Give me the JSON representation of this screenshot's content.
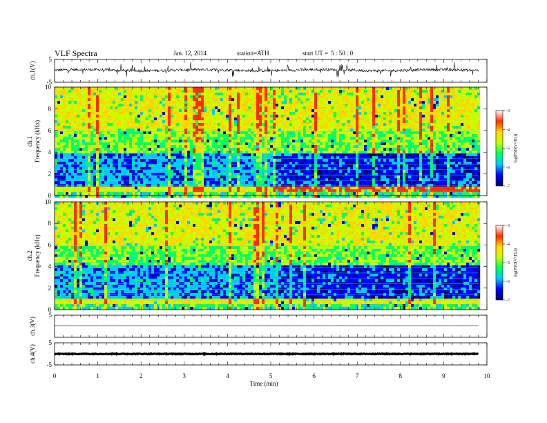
{
  "header": {
    "title": "VLF  Spectra",
    "date": "Jan. 12, 2014",
    "station": "station=ATH",
    "start_label": "start  UT  =",
    "start_time": "5 : 50 : 0"
  },
  "chart_data": [
    {
      "type": "line",
      "panel": "ch1-waveform",
      "ylabel": "ch.1(V)",
      "ylim": [
        -5,
        5
      ],
      "yticks": [
        "5",
        "-5"
      ],
      "x_range_min": [
        0,
        9.8
      ],
      "trace_level": 0.3,
      "color": "#000000"
    },
    {
      "type": "heatmap",
      "panel": "ch1-spectrogram",
      "ylabel_channel": "ch.1",
      "ylabel": "Frequency  (kHz)",
      "ylim": [
        0,
        10
      ],
      "yticks": [
        "0",
        "2",
        "4",
        "6",
        "8",
        "10"
      ],
      "x_range_min": [
        0,
        9.8
      ],
      "colorbar": {
        "label": "log(PSD(V²/Hz))",
        "range": [
          -7,
          -3
        ],
        "ticks": [
          "-3",
          "-4",
          "-5",
          "-6",
          "-7"
        ],
        "colors": [
          "#000070",
          "#0000ff",
          "#00c8ff",
          "#00ff60",
          "#c8ff00",
          "#ffd700",
          "#ff3000",
          "#ffffff"
        ]
      }
    },
    {
      "type": "heatmap",
      "panel": "ch2-spectrogram",
      "ylabel_channel": "ch.2",
      "ylabel": "Frequency  (kHz)",
      "ylim": [
        0,
        10
      ],
      "yticks": [
        "0",
        "2",
        "4",
        "6",
        "8",
        "10"
      ],
      "x_range_min": [
        0,
        9.8
      ],
      "colorbar": {
        "label": "log(PSD(V²/Hz))",
        "range": [
          -7,
          -3
        ],
        "ticks": [
          "-3",
          "-4",
          "-5",
          "-6",
          "-7"
        ],
        "colors": [
          "#000070",
          "#0000ff",
          "#00c8ff",
          "#00ff60",
          "#c8ff00",
          "#ffd700",
          "#ff3000",
          "#ffffff"
        ]
      }
    },
    {
      "type": "line",
      "panel": "ch3-waveform",
      "ylabel": "ch.3(V)",
      "ylim": [
        -5,
        5
      ],
      "yticks": [
        "5"
      ],
      "x_range_min": [
        0,
        9.8
      ],
      "trace_level": 0.2,
      "color": "#000000"
    },
    {
      "type": "line",
      "panel": "ch4-waveform",
      "ylabel": "ch.4(V)",
      "ylim": [
        -5,
        5
      ],
      "yticks": [
        "5",
        "-5"
      ],
      "x_range_min": [
        0,
        9.8
      ],
      "trace_level": 0.0,
      "color": "#000000"
    }
  ],
  "x_axis": {
    "label": "Time  (min)",
    "xlim": [
      0,
      10
    ],
    "ticks": [
      "0",
      "1",
      "2",
      "3",
      "4",
      "5",
      "6",
      "7",
      "8",
      "9",
      "10"
    ]
  }
}
